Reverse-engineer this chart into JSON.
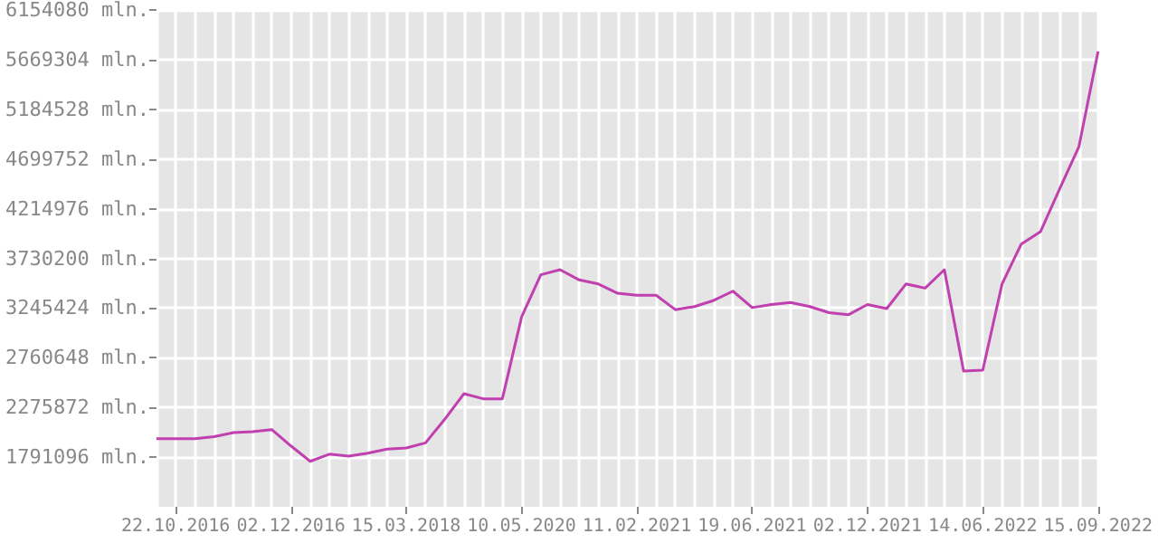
{
  "chart_data": {
    "type": "line",
    "categories": [
      null,
      "22.10.2016",
      null,
      null,
      null,
      null,
      null,
      "02.12.2016",
      null,
      null,
      null,
      null,
      null,
      "15.03.2018",
      null,
      null,
      null,
      null,
      null,
      "10.05.2020",
      null,
      null,
      null,
      null,
      null,
      "11.02.2021",
      null,
      null,
      null,
      null,
      null,
      "19.06.2021",
      null,
      null,
      null,
      null,
      null,
      "02.12.2021",
      null,
      null,
      null,
      null,
      null,
      "14.06.2022",
      null,
      null,
      null,
      null,
      null,
      "15.09.2022"
    ],
    "series": [
      {
        "color": "#c040b0",
        "values": [
          1970000,
          1970000,
          1970000,
          1990000,
          2030000,
          2040000,
          2060000,
          1900000,
          1750000,
          1820000,
          1800000,
          1830000,
          1870000,
          1880000,
          1930000,
          2160000,
          2410000,
          2360000,
          2360000,
          3160000,
          3570000,
          3620000,
          3520000,
          3480000,
          3390000,
          3370000,
          3370000,
          3230000,
          3260000,
          3320000,
          3410000,
          3250000,
          3280000,
          3300000,
          3260000,
          3200000,
          3180000,
          3280000,
          3240000,
          3480000,
          3440000,
          3620000,
          2630000,
          2640000,
          3480000,
          3870000,
          3990000,
          4410000,
          4820000,
          5750000
        ]
      }
    ],
    "ylim": [
      1306320,
      6154080
    ],
    "yticks": [
      {
        "value": 1791096,
        "label": "1791096 mln."
      },
      {
        "value": 2275872,
        "label": "2275872 mln."
      },
      {
        "value": 2760648,
        "label": "2760648 mln."
      },
      {
        "value": 3245424,
        "label": "3245424 mln."
      },
      {
        "value": 3730200,
        "label": "3730200 mln."
      },
      {
        "value": 4214976,
        "label": "4214976 mln."
      },
      {
        "value": 4699752,
        "label": "4699752 mln."
      },
      {
        "value": 5184528,
        "label": "5184528 mln."
      },
      {
        "value": 5669304,
        "label": "5669304 mln."
      },
      {
        "value": 6154080,
        "label": "6154080 mln."
      }
    ],
    "grid": true,
    "marker": "none",
    "line_style": "solid"
  }
}
